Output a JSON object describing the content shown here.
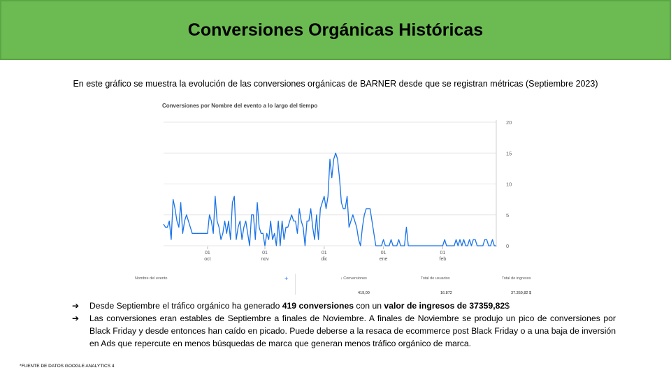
{
  "title": "Conversiones Orgánicas Históricas",
  "intro": "En este gráfico se muestra la evolución de las conversiones orgánicas de BARNER desde que se registran métricas (Septiembre 2023)",
  "chart_data": {
    "type": "line",
    "title": "Conversiones por Nombre del evento a lo largo del tiempo",
    "ylim": [
      0,
      20
    ],
    "yticks": [
      "20",
      "15",
      "10",
      "5",
      "0"
    ],
    "xticks": [
      {
        "day": "01",
        "month": "oct"
      },
      {
        "day": "01",
        "month": "nov"
      },
      {
        "day": "01",
        "month": "dic"
      },
      {
        "day": "01",
        "month": "ene"
      },
      {
        "day": "01",
        "month": "feb"
      }
    ],
    "series": [
      {
        "color": "#1a73e8",
        "values": [
          3.5,
          3,
          3,
          4,
          1,
          7.5,
          6,
          4,
          3,
          7,
          2,
          4,
          5,
          4,
          3,
          2,
          2,
          2,
          2,
          2,
          2,
          2,
          2,
          2,
          5,
          4,
          2,
          8,
          4,
          3,
          1,
          2,
          4,
          2,
          4,
          1,
          7,
          8,
          1,
          3,
          4,
          1,
          3,
          4,
          2,
          0,
          5,
          5,
          1,
          7,
          3,
          2,
          2,
          0,
          2,
          1,
          4,
          1,
          2,
          0,
          4,
          0,
          4,
          1,
          3,
          3,
          4,
          5,
          4,
          4,
          2,
          6,
          4,
          3,
          0,
          4,
          4,
          6,
          3,
          1,
          5,
          1,
          6,
          7,
          8,
          6,
          8,
          14,
          11,
          14,
          15,
          14,
          11,
          7,
          6,
          6,
          8,
          3,
          4,
          5,
          4,
          3,
          1,
          0,
          3,
          5,
          6,
          6,
          6,
          4,
          2,
          0,
          0,
          0,
          0,
          1,
          0,
          0,
          0,
          1,
          0,
          0,
          0,
          1,
          0,
          0,
          0,
          3,
          0,
          0,
          0,
          0,
          0,
          0,
          0,
          0,
          0,
          0,
          0,
          0,
          0,
          0,
          0,
          0,
          0,
          0,
          0,
          1,
          0,
          0,
          0,
          0,
          0,
          1,
          0,
          1,
          0,
          1,
          0,
          0,
          1,
          0,
          1,
          1,
          0,
          0,
          0,
          0,
          1,
          1,
          0,
          0,
          1,
          0,
          0
        ]
      }
    ]
  },
  "table": {
    "event_header": "Nombre del evento",
    "plus": "+",
    "conv_header": "↓ Conversiones",
    "users_header": "Total de usuarios",
    "revenue_header": "Total de ingresos",
    "conv_value": "419,00",
    "users_value": "16.872",
    "revenue_value": "37.359,82 $"
  },
  "bullets": {
    "arrow": "➔",
    "b1_pre": "Desde Septiembre el tráfico orgánico ha generado ",
    "b1_bold1": "419 conversiones",
    "b1_mid": " con un ",
    "b1_bold2": "valor de ingresos de 37359,82",
    "b1_post": "$",
    "b2": "Las conversiones eran estables de Septiembre a finales de Noviembre. A finales de Noviembre se produjo un pico de conversiones por Black Friday y desde entonces han caído en picado. Puede deberse a la resaca de ecommerce post Black Friday o a una baja de inversión en Ads que repercute en menos búsquedas de marca que generan menos tráfico orgánico de marca."
  },
  "footnote": "*FUENTE DE DATOS GOOGLE ANALYTICS 4"
}
